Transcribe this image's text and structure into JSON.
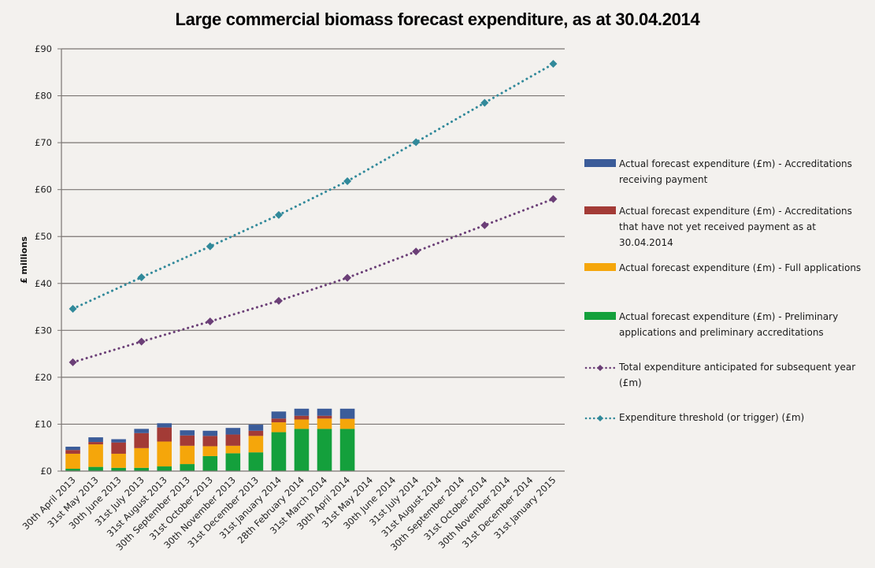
{
  "chart_data": {
    "type": "bar",
    "subtype": "stacked-bar-with-lines",
    "title": "Large commercial biomass forecast expenditure, as at 30.04.2014",
    "xlabel": "",
    "ylabel": "£ millions",
    "ylim": [
      0,
      90
    ],
    "ytick_step": 10,
    "ytick_labels": [
      "£0",
      "£10",
      "£20",
      "£30",
      "£40",
      "£50",
      "£60",
      "£70",
      "£80",
      "£90"
    ],
    "grid": true,
    "legend_position": "right",
    "categories": [
      "30th April 2013",
      "31st May 2013",
      "30th June 2013",
      "31st July 2013",
      "31st August 2013",
      "30th September 2013",
      "31st October 2013",
      "30th November 2013",
      "31st December 2013",
      "31st January 2014",
      "28th February 2014",
      "31st March 2014",
      "30th April 2014",
      "31st May 2014",
      "30th June 2014",
      "31st July 2014",
      "31st August 2014",
      "30th September 2014",
      "31st October 2014",
      "30th November 2014",
      "31st December 2014",
      "31st January 2015"
    ],
    "bar_series": [
      {
        "name": "Actual forecast expenditure (£m)  - Preliminary applications and preliminary accreditations",
        "color": "#14a03c",
        "values": [
          0.5,
          0.9,
          0.7,
          0.7,
          1.0,
          1.5,
          3.2,
          3.8,
          4.0,
          8.3,
          9.0,
          9.0,
          9.0,
          null,
          null,
          null,
          null,
          null,
          null,
          null,
          null,
          null
        ]
      },
      {
        "name": "Actual forecast expenditure (£m) - Full applications",
        "color": "#f5a60a",
        "values": [
          3.2,
          4.8,
          3.0,
          4.2,
          5.3,
          3.9,
          2.1,
          1.6,
          3.5,
          2.1,
          2.0,
          2.2,
          2.1,
          null,
          null,
          null,
          null,
          null,
          null,
          null,
          null,
          null
        ]
      },
      {
        "name": "Actual forecast expenditure (£m) - Accreditations that have not yet received payment as at 30.04.2014",
        "color": "#a33b36",
        "values": [
          0.8,
          0.5,
          2.4,
          3.2,
          3.0,
          2.2,
          2.2,
          2.4,
          1.1,
          0.8,
          0.8,
          0.6,
          0.1,
          null,
          null,
          null,
          null,
          null,
          null,
          null,
          null,
          null
        ]
      },
      {
        "name": "Actual forecast expenditure (£m) - Accreditations receiving payment",
        "color": "#3b5c99",
        "values": [
          0.7,
          1.0,
          0.7,
          0.9,
          0.9,
          1.1,
          1.1,
          1.4,
          1.3,
          1.5,
          1.5,
          1.5,
          2.1,
          null,
          null,
          null,
          null,
          null,
          null,
          null,
          null,
          null
        ]
      }
    ],
    "line_series": [
      {
        "name": "Total expenditure anticipated for subsequent year (£m)",
        "color": "#6b3f77",
        "style": "dotted",
        "marker": "diamond",
        "values": [
          23.2,
          null,
          null,
          27.6,
          null,
          null,
          31.9,
          null,
          null,
          36.3,
          null,
          null,
          41.2,
          null,
          null,
          46.8,
          null,
          null,
          52.4,
          null,
          null,
          58.0
        ]
      },
      {
        "name": "Expenditure threshold (or trigger) (£m)",
        "color": "#31899a",
        "style": "dotted",
        "marker": "diamond",
        "values": [
          34.6,
          null,
          null,
          41.3,
          null,
          null,
          47.9,
          null,
          null,
          54.6,
          null,
          null,
          61.8,
          null,
          null,
          70.1,
          null,
          null,
          78.5,
          null,
          null,
          86.8
        ]
      }
    ],
    "legend": [
      {
        "label": "Actual forecast expenditure (£m) - Accreditations receiving payment",
        "kind": "bar",
        "color": "#3b5c99"
      },
      {
        "label": "Actual forecast expenditure (£m) - Accreditations that have not yet received payment as at 30.04.2014",
        "kind": "bar",
        "color": "#a33b36"
      },
      {
        "label": "Actual forecast expenditure (£m) - Full applications",
        "kind": "bar",
        "color": "#f5a60a"
      },
      {
        "label": "Actual forecast expenditure (£m)  - Preliminary applications and preliminary accreditations",
        "kind": "bar",
        "color": "#14a03c"
      },
      {
        "label": "Total expenditure anticipated for subsequent year (£m)",
        "kind": "line",
        "color": "#6b3f77"
      },
      {
        "label": "Expenditure threshold (or trigger) (£m)",
        "kind": "line",
        "color": "#31899a"
      }
    ]
  }
}
